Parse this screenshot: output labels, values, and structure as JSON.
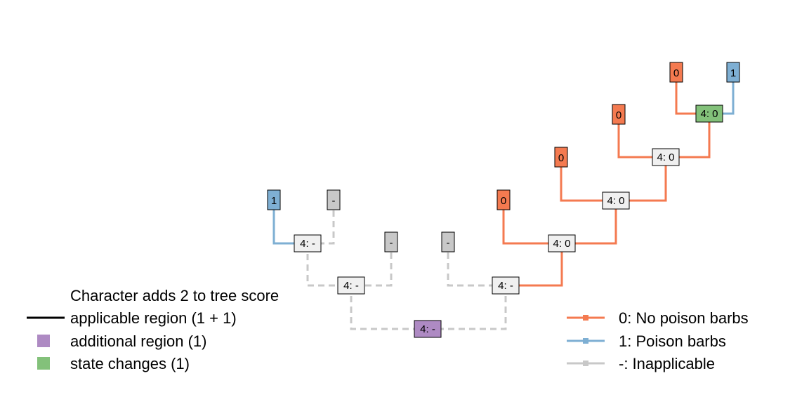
{
  "colors": {
    "state_0": "#f47a50",
    "state_1": "#7eafd3",
    "inapplicable": "#c8c8c8",
    "additional_region": "#ae8ac3",
    "state_change": "#83c17a",
    "internal_fill": "#f0f0f0",
    "black": "#000000"
  },
  "tips": [
    {
      "id": "t1",
      "label": "1",
      "state": "1"
    },
    {
      "id": "t2",
      "label": "-",
      "state": "-"
    },
    {
      "id": "t3",
      "label": "-",
      "state": "-"
    },
    {
      "id": "t4",
      "label": "-",
      "state": "-"
    },
    {
      "id": "t5",
      "label": "0",
      "state": "0"
    },
    {
      "id": "t6",
      "label": "0",
      "state": "0"
    },
    {
      "id": "t7",
      "label": "0",
      "state": "0"
    },
    {
      "id": "t8",
      "label": "0",
      "state": "0"
    },
    {
      "id": "t9",
      "label": "1",
      "state": "1"
    }
  ],
  "internal_nodes": [
    {
      "id": "n1",
      "label": "4: -",
      "highlight": "none"
    },
    {
      "id": "n2",
      "label": "4: -",
      "highlight": "none"
    },
    {
      "id": "n3",
      "label": "4: -",
      "highlight": "none"
    },
    {
      "id": "n4",
      "label": "4: -",
      "highlight": "additional"
    },
    {
      "id": "n5",
      "label": "4: 0",
      "highlight": "none"
    },
    {
      "id": "n6",
      "label": "4: 0",
      "highlight": "none"
    },
    {
      "id": "n7",
      "label": "4: 0",
      "highlight": "none"
    },
    {
      "id": "n8",
      "label": "4: 0",
      "highlight": "change"
    }
  ],
  "legend_left": {
    "title": "Character adds 2 to tree score",
    "items": [
      {
        "label": "applicable region (1 + 1)",
        "symbol": "line"
      },
      {
        "label": "additional region (1)",
        "symbol": "square",
        "color": "#ae8ac3"
      },
      {
        "label": "state changes (1)",
        "symbol": "square",
        "color": "#83c17a"
      }
    ]
  },
  "legend_right": {
    "items": [
      {
        "label": "0: No poison barbs",
        "color": "#f47a50"
      },
      {
        "label": "1: Poison barbs",
        "color": "#7eafd3"
      },
      {
        "label": "-: Inapplicable",
        "color": "#c8c8c8"
      }
    ]
  }
}
